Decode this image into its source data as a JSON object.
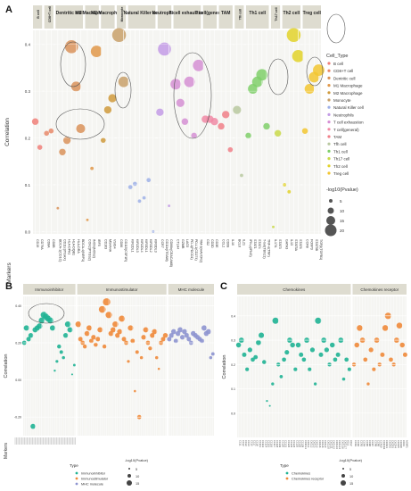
{
  "chart_data": [
    {
      "panel": "A",
      "type": "scatter",
      "ylabel": "Correlation",
      "xlabel": "Markers",
      "ylim": [
        0,
        0.43
      ],
      "yticks": [
        "0.0",
        "0.1",
        "0.2",
        "0.3",
        "0.4"
      ],
      "legend": {
        "type_title": "Cell_Type",
        "size_title": "-log10(Pvalue)",
        "sizes": [
          "5",
          "10",
          "15",
          "20"
        ],
        "placement": "right"
      },
      "groups": [
        {
          "name": "B cell",
          "color": "#f0807a",
          "points": [
            {
              "m": "CD19",
              "r": 0.235,
              "s": 6
            },
            {
              "m": "CD79A",
              "r": 0.18,
              "s": 4
            }
          ]
        },
        {
          "name": "CD8+T cell",
          "color": "#e8886a",
          "points": [
            {
              "m": "CD8A",
              "r": 0.21,
              "s": 4
            },
            {
              "m": "CD8B",
              "r": 0.215,
              "s": 4
            }
          ]
        },
        {
          "name": "Dentritic cell",
          "color": "#d9925a",
          "points": [
            {
              "m": "BDCA-1(CD1C)",
              "r": 0.05,
              "s": 1
            },
            {
              "m": "CD11c(ITGAX)",
              "r": 0.17,
              "s": 6
            },
            {
              "m": "HLA-DPA1",
              "r": 0.195,
              "s": 7
            },
            {
              "m": "HLA-DQB1",
              "r": 0.395,
              "s": 14
            },
            {
              "m": "HLA-DRA",
              "r": 0.31,
              "s": 10
            },
            {
              "m": "BDCA-4(NRP1)",
              "r": 0.22,
              "s": 9
            }
          ]
        },
        {
          "name": "M1 Macrophage",
          "color": "#e0984a",
          "points": [
            {
              "m": "COX2(PTGS2)",
              "r": 0.025,
              "s": 1
            },
            {
              "m": "INOS(NOS2)",
              "r": 0.135,
              "s": 2
            },
            {
              "m": "IRF5",
              "r": 0.385,
              "s": 12
            }
          ]
        },
        {
          "name": "M2 Macrophage",
          "color": "#cf9a3c",
          "points": [
            {
              "m": "CD163",
              "r": 0.195,
              "s": 4
            },
            {
              "m": "MS4A4A",
              "r": 0.26,
              "s": 7
            },
            {
              "m": "VSIG4",
              "r": 0.285,
              "s": 8
            }
          ]
        },
        {
          "name": "Monocyte",
          "color": "#c8a06a",
          "points": [
            {
              "m": "CD86",
              "r": 0.42,
              "s": 15
            },
            {
              "m": "CD115(CSF1R)",
              "r": 0.32,
              "s": 11
            }
          ]
        },
        {
          "name": "Natural Killer cell",
          "color": "#9db0e8",
          "points": [
            {
              "m": "KIR2DL1",
              "r": 0.095,
              "s": 3
            },
            {
              "m": "KIR2DL3",
              "r": 0.102,
              "s": 3
            },
            {
              "m": "KIR2DL4",
              "r": 0.065,
              "s": 2
            },
            {
              "m": "KIR3DL1",
              "r": 0.072,
              "s": 2
            },
            {
              "m": "KIR3DL2",
              "r": 0.11,
              "s": 3
            },
            {
              "m": "KIR3DL3",
              "r": 0.0,
              "s": 1
            }
          ]
        },
        {
          "name": "Neutrophils",
          "color": "#c39be6",
          "points": [
            {
              "m": "CCR7",
              "r": 0.255,
              "s": 7
            },
            {
              "m": "CD11b(ITGAM)",
              "r": 0.39,
              "s": 14
            },
            {
              "m": "CD66b(CEACAM8)",
              "r": 0.055,
              "s": 1
            }
          ]
        },
        {
          "name": "T cell exhaustion",
          "color": "#d58fd4",
          "points": [
            {
              "m": "CTLA4",
              "r": 0.315,
              "s": 11
            },
            {
              "m": "GZMB",
              "r": 0.275,
              "s": 8
            },
            {
              "m": "LAG3",
              "r": 0.235,
              "s": 6
            },
            {
              "m": "PD-1(PDCD1)",
              "r": 0.32,
              "s": 11
            },
            {
              "m": "PD-L1(CD274)",
              "r": 0.205,
              "s": 5
            },
            {
              "m": "TIM-3(HAVCR2)",
              "r": 0.355,
              "s": 12
            }
          ]
        },
        {
          "name": "T cell(general)",
          "color": "#f08aa6",
          "points": [
            {
              "m": "CD2",
              "r": 0.24,
              "s": 7
            },
            {
              "m": "CD3D",
              "r": 0.24,
              "s": 7
            },
            {
              "m": "CD3E",
              "r": 0.235,
              "s": 7
            }
          ]
        },
        {
          "name": "TAM",
          "color": "#f07f88",
          "points": [
            {
              "m": "CCL2",
              "r": 0.225,
              "s": 6
            },
            {
              "m": "CD68",
              "r": 0.25,
              "s": 7
            },
            {
              "m": "IL10",
              "r": 0.175,
              "s": 4
            }
          ]
        },
        {
          "name": "Tfh cell",
          "color": "#b8c8a0",
          "points": [
            {
              "m": "BCL6",
              "r": 0.26,
              "s": 8
            },
            {
              "m": "IL21",
              "r": 0.12,
              "s": 2
            }
          ]
        },
        {
          "name": "Th1 cell",
          "color": "#7fcf6a",
          "points": [
            {
              "m": "IFN-γ(IFNG)",
              "r": 0.205,
              "s": 5
            },
            {
              "m": "STAT1",
              "r": 0.305,
              "s": 10
            },
            {
              "m": "STAT4",
              "r": 0.32,
              "s": 11
            },
            {
              "m": "T-bet(TBX21)",
              "r": 0.335,
              "s": 12
            },
            {
              "m": "TNF-α(TNF)",
              "r": 0.225,
              "s": 6
            }
          ]
        },
        {
          "name": "Th17 cell",
          "color": "#c9d94a",
          "points": [
            {
              "m": "IL17A",
              "r": 0.01,
              "s": 1
            },
            {
              "m": "STAT3",
              "r": 0.21,
              "s": 6
            }
          ]
        },
        {
          "name": "Th2 cell",
          "color": "#e2d22a",
          "points": [
            {
              "m": "GATA3",
              "r": 0.1,
              "s": 2
            },
            {
              "m": "IL13",
              "r": 0.085,
              "s": 2
            },
            {
              "m": "STAT5A",
              "r": 0.42,
              "s": 15
            },
            {
              "m": "STAT6",
              "r": 0.375,
              "s": 13
            }
          ]
        },
        {
          "name": "Treg cell",
          "color": "#f2c530",
          "points": [
            {
              "m": "CCR8",
              "r": 0.215,
              "s": 5
            },
            {
              "m": "FOXP3",
              "r": 0.305,
              "s": 10
            },
            {
              "m": "STAT5B",
              "r": 0.33,
              "s": 11
            },
            {
              "m": "TGFβ(TGFB1)",
              "r": 0.345,
              "s": 12
            }
          ]
        }
      ],
      "legend_items": [
        "B cell",
        "CD8+T cell",
        "Dentritic cell",
        "M1 Macrophage",
        "M2 Macrophage",
        "Monocyte",
        "Natural Killer cell",
        "Neutrophils",
        "T cell exhaustion",
        "T cell(general)",
        "TAM",
        "Tfh cell",
        "Th1 cell",
        "Th17 cell",
        "Th2 cell",
        "Treg cell"
      ]
    },
    {
      "panel": "B",
      "type": "scatter",
      "ylabel": "Correlation",
      "xlabel": "Markers",
      "ylim": [
        -0.3,
        0.45
      ],
      "yticks": [
        "0.40",
        "0.20",
        "0.00",
        "-0.20"
      ],
      "facets": [
        "Immunoinhibitor",
        "Immunostimulator",
        "MHC molecule"
      ],
      "legend": {
        "type_title": "Type",
        "types": [
          "Immunoinhibitor",
          "Immunostimulator",
          "MHC molecule"
        ],
        "size_title": "-log10(Pvalue)",
        "sizes": [
          "5",
          "10",
          "15"
        ]
      },
      "series": [
        {
          "name": "Immunoinhibitor",
          "color": "#1fb394",
          "values": [
            0.2,
            0.28,
            0.22,
            0.24,
            -0.25,
            0.27,
            0.28,
            0.29,
            0.32,
            0.35,
            0.34,
            0.33,
            0.32,
            0.28,
            0.05,
            0.1,
            0.18,
            0.15,
            0.12,
            0.24,
            0.3,
            0.27,
            0.03,
            0.08
          ]
        },
        {
          "name": "Immunostimulator",
          "color": "#f08a3a",
          "values": [
            0.3,
            0.22,
            0.2,
            0.18,
            0.25,
            0.28,
            0.21,
            0.23,
            0.19,
            0.22,
            0.27,
            0.38,
            0.18,
            0.42,
            0.35,
            0.25,
            0.27,
            0.3,
            0.24,
            0.26,
            0.33,
            0.22,
            0.2,
            0.1,
            0.28,
            0.21,
            -0.06,
            0.15,
            -0.2,
            0.12,
            0.23,
            0.27,
            0.2,
            0.17,
            0.24,
            0.26,
            0.12,
            0.06,
            0.2,
            0.22,
            0.24
          ]
        },
        {
          "name": "MHC molecule",
          "color": "#8d93cf",
          "values": [
            0.22,
            0.24,
            0.26,
            0.21,
            0.25,
            0.27,
            0.23,
            0.26,
            0.24,
            0.22,
            0.2,
            0.25,
            0.24,
            0.23,
            0.22,
            0.21,
            0.28,
            0.25,
            0.26,
            0.12,
            0.14
          ]
        }
      ]
    },
    {
      "panel": "C",
      "type": "scatter",
      "ylabel": "Correlation",
      "ylim": [
        -0.1,
        0.48
      ],
      "yticks": [
        "0.4",
        "0.3",
        "0.2",
        "0.1",
        "0.0"
      ],
      "facets": [
        "Chemokines",
        "Chemokines receptor"
      ],
      "legend": {
        "type_title": "Type",
        "types": [
          "Chemokines",
          "Chemokines receptor"
        ],
        "size_title": "-log10(Pvalue)",
        "sizes": [
          "5",
          "10",
          "15"
        ]
      },
      "x_labels": [
        "CCL1",
        "CCL2",
        "CCL3",
        "CCL4",
        "CCL5",
        "CCL7",
        "CCL8",
        "CCL11",
        "CCL13",
        "CCL14",
        "CCL15",
        "CCL16",
        "CCL17",
        "CCL18",
        "CCL19",
        "CCL20",
        "CCL21",
        "CCL22",
        "CCL23",
        "CCL24",
        "CCL25",
        "CCL26",
        "CCL28",
        "CX3CL1",
        "CXCL1",
        "CXCL2",
        "CXCL3",
        "CXCL5",
        "CXCL6",
        "CXCL8",
        "CXCL9",
        "CXCL10",
        "CXCL11",
        "CXCL12",
        "CXCL13",
        "CXCL14",
        "CXCL16",
        "CXCL17",
        "XCL1",
        "XCL2",
        "CCR1",
        "CCR2",
        "CCR3",
        "CCR4",
        "CCR5",
        "CCR6",
        "CCR7",
        "CCR8",
        "CCR9",
        "CCR10",
        "CX3CR1",
        "CXCR1",
        "CXCR2",
        "CXCR3",
        "CXCR4",
        "CXCR5",
        "CXCR6",
        "XCR1",
        "ACKR1"
      ],
      "series": [
        {
          "name": "Chemokines",
          "color": "#1fb394",
          "values": [
            0.28,
            0.3,
            0.24,
            0.18,
            0.26,
            0.22,
            0.23,
            0.29,
            0.32,
            0.21,
            0.05,
            0.03,
            0.12,
            0.38,
            0.2,
            0.15,
            0.22,
            0.25,
            0.3,
            0.28,
            0.18,
            0.28,
            0.24,
            0.22,
            0.3,
            0.18,
            0.26,
            0.12,
            0.38,
            0.24,
            0.3,
            0.26,
            0.2,
            0.28,
            0.22,
            0.24,
            0.3,
            0.14,
            0.22,
            0.18
          ]
        },
        {
          "name": "Chemokines receptor",
          "color": "#f08a3a",
          "values": [
            0.2,
            0.28,
            0.35,
            0.3,
            0.22,
            0.12,
            0.26,
            0.18,
            0.3,
            0.2,
            0.24,
            0.35,
            0.4,
            0.22,
            0.2,
            0.3,
            0.36,
            0.28,
            0.24
          ]
        }
      ]
    }
  ],
  "labels": {
    "panel_a": "A",
    "panel_b": "B",
    "panel_c": "C"
  }
}
